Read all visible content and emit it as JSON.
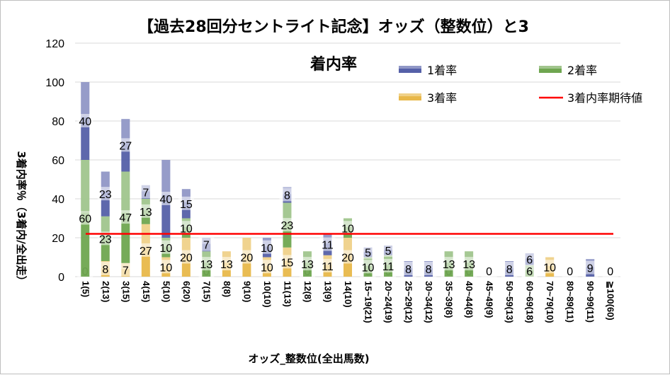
{
  "chart_data": {
    "type": "bar",
    "stacked": true,
    "title": "【過去28回分セントライト記念】オッズ（整数位）と3着内率",
    "xlabel": "オッズ_整数位(全出馬数)",
    "ylabel": "3着内率％（3着内/全出走）",
    "ylim": [
      0,
      120
    ],
    "yticks": [
      "0",
      "20",
      "40",
      "60",
      "80",
      "100",
      "120"
    ],
    "grid": true,
    "legend_position": "top-right",
    "categories": [
      "1(5)",
      "2(13)",
      "3(15)",
      "4(15)",
      "5(10)",
      "6(20)",
      "7(15)",
      "8(8)",
      "9(10)",
      "10(10)",
      "11(13)",
      "12(8)",
      "13(9)",
      "14(10)",
      "15~19(21)",
      "20~24(19)",
      "25~29(12)",
      "30~34(12)",
      "35~39(8)",
      "40~44(8)",
      "45~49(9)",
      "50~59(13)",
      "60~69(18)",
      "70~79(10)",
      "80~89(11)",
      "90~99(11)",
      "≧100(60)"
    ],
    "series": [
      {
        "name": "3着率",
        "color": "#e8b84a",
        "values": [
          0,
          8,
          7,
          27,
          10,
          20,
          0,
          13,
          20,
          10,
          15,
          0,
          11,
          20,
          0,
          0,
          0,
          0,
          0,
          0,
          0,
          0,
          0,
          10,
          0,
          0,
          0
        ]
      },
      {
        "name": "2着率",
        "color": "#6fa650",
        "values": [
          60,
          23,
          47,
          13,
          10,
          10,
          13,
          0,
          0,
          0,
          23,
          13,
          0,
          10,
          10,
          11,
          0,
          0,
          13,
          13,
          0,
          0,
          6,
          0,
          0,
          0,
          0
        ]
      },
      {
        "name": "1着率",
        "color": "#5560a8",
        "values": [
          40,
          23,
          27,
          7,
          40,
          15,
          7,
          0,
          0,
          10,
          8,
          0,
          11,
          0,
          5,
          5,
          8,
          8,
          0,
          0,
          0,
          8,
          6,
          0,
          0,
          9,
          0
        ]
      }
    ],
    "reference_line": {
      "name": "3着内率期待値",
      "color": "#ff0000",
      "value": 22
    },
    "legend": [
      "1着率",
      "2着率",
      "3着率",
      "3着内率期待値"
    ]
  }
}
